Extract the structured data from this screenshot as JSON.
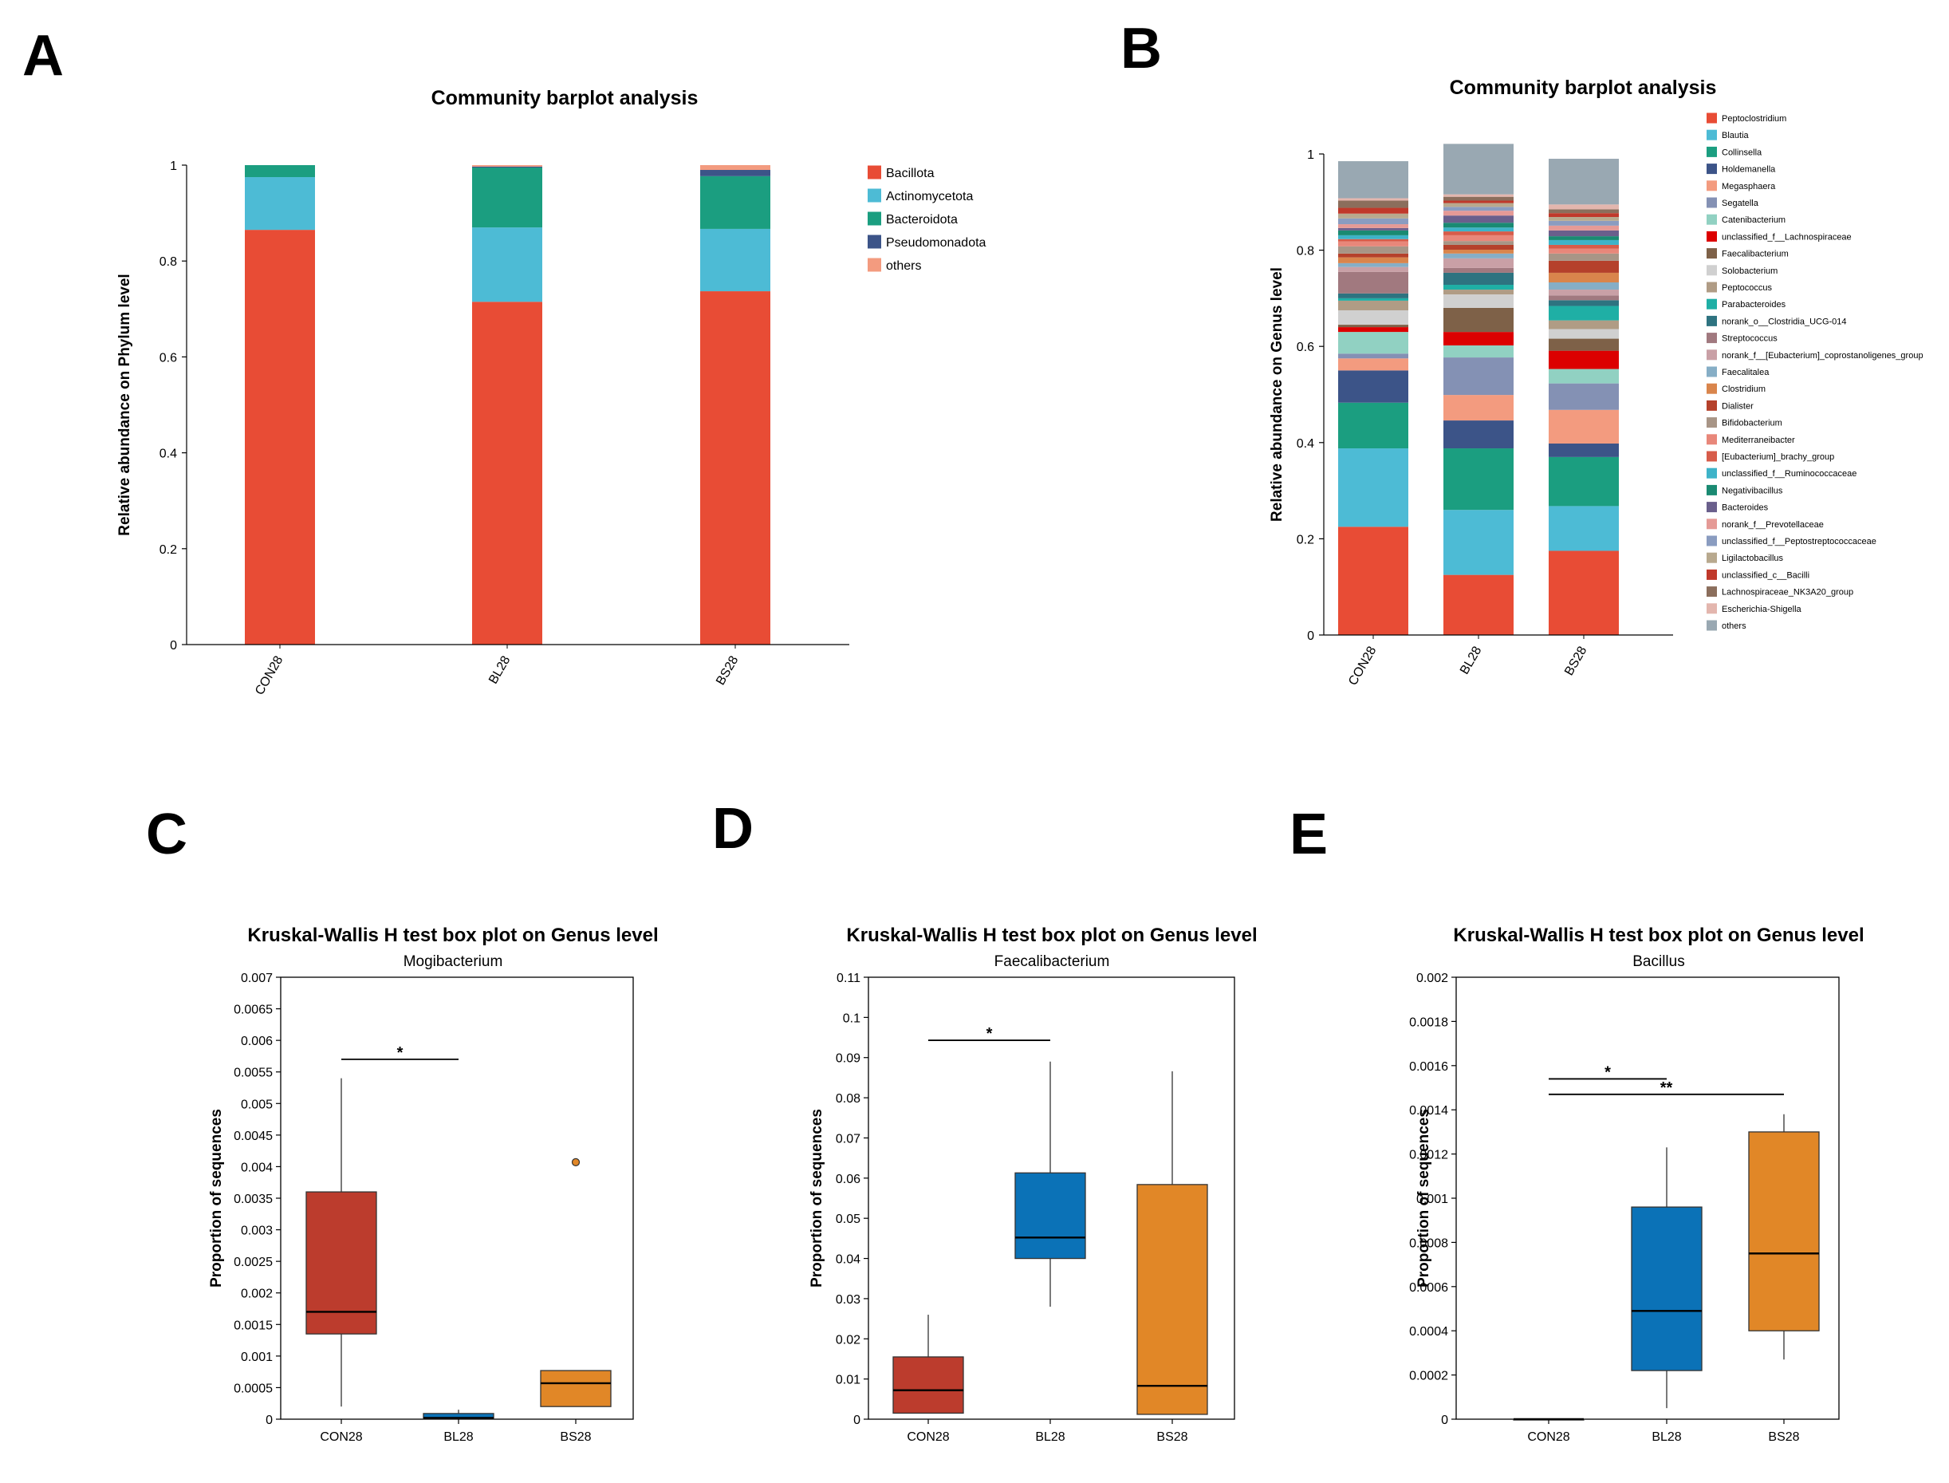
{
  "panel_labels": {
    "a": "A",
    "b": "B",
    "c": "C",
    "d": "D",
    "e": "E"
  },
  "chart_data": [
    {
      "id": "A",
      "type": "bar",
      "stacked": true,
      "title": "Community barplot analysis",
      "ylabel": "Relative abundance on Phylum level",
      "xlabel": "",
      "ylim": [
        0,
        1
      ],
      "yticks": [
        0,
        0.2,
        0.4,
        0.6,
        0.8,
        1
      ],
      "yticklabels": [
        "0",
        "0.2",
        "0.4",
        "0.6",
        "0.8",
        "1"
      ],
      "categories": [
        "CON28",
        "BL28",
        "BS28"
      ],
      "legend_position": "right",
      "series": [
        {
          "name": "Bacillota",
          "color": "#E84C35",
          "values": [
            0.865,
            0.715,
            0.737
          ]
        },
        {
          "name": "Actinomycetota",
          "color": "#4DBBD5",
          "values": [
            0.11,
            0.155,
            0.13
          ]
        },
        {
          "name": "Bacteroidota",
          "color": "#1B9E80",
          "values": [
            0.025,
            0.125,
            0.11
          ]
        },
        {
          "name": "Pseudomonadota",
          "color": "#3C5488",
          "values": [
            0.0,
            0.002,
            0.013
          ]
        },
        {
          "name": "others",
          "color": "#F39B7F",
          "values": [
            0.0,
            0.003,
            0.01
          ]
        }
      ]
    },
    {
      "id": "B",
      "type": "bar",
      "stacked": true,
      "title": "Community barplot analysis",
      "ylabel": "Relative abundance on Genus level",
      "xlabel": "",
      "ylim": [
        0,
        1
      ],
      "yticks": [
        0,
        0.2,
        0.4,
        0.6,
        0.8,
        1
      ],
      "yticklabels": [
        "0",
        "0.2",
        "0.4",
        "0.6",
        "0.8",
        "1"
      ],
      "categories": [
        "CON28",
        "BL28",
        "BS28"
      ],
      "legend_position": "right",
      "series": [
        {
          "name": "Peptoclostridium",
          "color": "#E84C35",
          "values": [
            0.225,
            0.125,
            0.175
          ]
        },
        {
          "name": "Blautia",
          "color": "#4DBBD5",
          "values": [
            0.163,
            0.135,
            0.093
          ]
        },
        {
          "name": "Collinsella",
          "color": "#1B9E80",
          "values": [
            0.095,
            0.128,
            0.102
          ]
        },
        {
          "name": "Holdemanella",
          "color": "#3C5488",
          "values": [
            0.067,
            0.058,
            0.028
          ]
        },
        {
          "name": "Megasphaera",
          "color": "#F39B7F",
          "values": [
            0.025,
            0.053,
            0.07
          ]
        },
        {
          "name": "Segatella",
          "color": "#8491B4",
          "values": [
            0.01,
            0.078,
            0.055
          ]
        },
        {
          "name": "Catenibacterium",
          "color": "#91D1C2",
          "values": [
            0.045,
            0.025,
            0.03
          ]
        },
        {
          "name": "unclassified_f__Lachnospiraceae",
          "color": "#DC0000",
          "values": [
            0.01,
            0.028,
            0.038
          ]
        },
        {
          "name": "Faecalibacterium",
          "color": "#7E6148",
          "values": [
            0.005,
            0.05,
            0.025
          ]
        },
        {
          "name": "Solobacterium",
          "color": "#D0D0D0",
          "values": [
            0.03,
            0.028,
            0.02
          ]
        },
        {
          "name": "Peptococcus",
          "color": "#B09C85",
          "values": [
            0.02,
            0.01,
            0.018
          ]
        },
        {
          "name": "Parabacteroides",
          "color": "#1FAFA5",
          "values": [
            0.005,
            0.01,
            0.03
          ]
        },
        {
          "name": "norank_o__Clostridia_UCG-014",
          "color": "#2E7380",
          "values": [
            0.01,
            0.025,
            0.012
          ]
        },
        {
          "name": "Streptococcus",
          "color": "#A1797F",
          "values": [
            0.045,
            0.01,
            0.01
          ]
        },
        {
          "name": "norank_f__[Eubacterium]_coprostanoligenes_group",
          "color": "#C9A0A6",
          "values": [
            0.01,
            0.02,
            0.012
          ]
        },
        {
          "name": "Faecalitalea",
          "color": "#86AEC6",
          "values": [
            0.008,
            0.01,
            0.015
          ]
        },
        {
          "name": "Clostridium",
          "color": "#D9854C",
          "values": [
            0.012,
            0.008,
            0.02
          ]
        },
        {
          "name": "Dialister",
          "color": "#B5412B",
          "values": [
            0.008,
            0.01,
            0.025
          ]
        },
        {
          "name": "Bifidobacterium",
          "color": "#A89586",
          "values": [
            0.015,
            0.008,
            0.015
          ]
        },
        {
          "name": "Mediterraneibacter",
          "color": "#E8877A",
          "values": [
            0.01,
            0.012,
            0.01
          ]
        },
        {
          "name": "[Eubacterium]_brachy_group",
          "color": "#D75C4A",
          "values": [
            0.005,
            0.008,
            0.008
          ]
        },
        {
          "name": "unclassified_f__Ruminococcaceae",
          "color": "#3EB3C8",
          "values": [
            0.008,
            0.008,
            0.01
          ]
        },
        {
          "name": "Negativibacillus",
          "color": "#1A8A72",
          "values": [
            0.01,
            0.01,
            0.008
          ]
        },
        {
          "name": "Bacteroides",
          "color": "#6A5F8C",
          "values": [
            0.005,
            0.015,
            0.012
          ]
        },
        {
          "name": "norank_f__Prevotellaceae",
          "color": "#E59A96",
          "values": [
            0.008,
            0.01,
            0.01
          ]
        },
        {
          "name": "unclassified_f__Peptostreptococcaceae",
          "color": "#8A9CC0",
          "values": [
            0.012,
            0.008,
            0.01
          ]
        },
        {
          "name": "Ligilactobacillus",
          "color": "#B8A98E",
          "values": [
            0.01,
            0.008,
            0.008
          ]
        },
        {
          "name": "unclassified_c__Bacilli",
          "color": "#C0392B",
          "values": [
            0.012,
            0.005,
            0.008
          ]
        },
        {
          "name": "Lachnospiraceae_NK3A20_group",
          "color": "#8B6E5C",
          "values": [
            0.015,
            0.008,
            0.008
          ]
        },
        {
          "name": "Escherichia-Shigella",
          "color": "#E3B6AE",
          "values": [
            0.005,
            0.005,
            0.01
          ]
        },
        {
          "name": "others",
          "color": "#99A8B2",
          "values": [
            0.077,
            0.105,
            0.095
          ]
        }
      ]
    },
    {
      "id": "C",
      "type": "box",
      "title": "Kruskal-Wallis H test box plot on Genus level",
      "subtitle": "Mogibacterium",
      "ylabel": "Proportion of sequences",
      "xlabel": "",
      "ylim": [
        0,
        0.007
      ],
      "yticks": [
        0,
        0.0005,
        0.001,
        0.0015,
        0.002,
        0.0025,
        0.003,
        0.0035,
        0.004,
        0.0045,
        0.005,
        0.0055,
        0.006,
        0.0065,
        0.007
      ],
      "yticklabels": [
        "0",
        "0.0005",
        "0.001",
        "0.0015",
        "0.002",
        "0.0025",
        "0.003",
        "0.0035",
        "0.004",
        "0.0045",
        "0.005",
        "0.0055",
        "0.006",
        "0.0065",
        "0.007"
      ],
      "categories": [
        "CON28",
        "BL28",
        "BS28"
      ],
      "boxes": [
        {
          "name": "CON28",
          "color": "#BC3C2D",
          "whisker_low": 0.0002,
          "q1": 0.00135,
          "median": 0.0017,
          "q3": 0.0036,
          "whisker_high": 0.0054,
          "outliers": []
        },
        {
          "name": "BL28",
          "color": "#0B72B7",
          "whisker_low": 0.0,
          "q1": 0.0,
          "median": 2e-05,
          "q3": 9e-05,
          "whisker_high": 0.00015,
          "outliers": []
        },
        {
          "name": "BS28",
          "color": "#E18727",
          "whisker_low": 0.0002,
          "q1": 0.0002,
          "median": 0.00057,
          "q3": 0.00077,
          "whisker_high": 0.00077,
          "outliers": [
            0.00407
          ]
        }
      ],
      "significance": [
        {
          "from": 0,
          "to": 1,
          "y": 0.0057,
          "label": "*"
        }
      ]
    },
    {
      "id": "D",
      "type": "box",
      "title": "Kruskal-Wallis H test box plot on Genus level",
      "subtitle": "Faecalibacterium",
      "ylabel": "Proportion of sequences",
      "xlabel": "",
      "ylim": [
        0,
        0.11
      ],
      "yticks": [
        0,
        0.01,
        0.02,
        0.03,
        0.04,
        0.05,
        0.06,
        0.07,
        0.08,
        0.09,
        0.1,
        0.11
      ],
      "yticklabels": [
        "0",
        "0.01",
        "0.02",
        "0.03",
        "0.04",
        "0.05",
        "0.06",
        "0.07",
        "0.08",
        "0.09",
        "0.1",
        "0.11"
      ],
      "categories": [
        "CON28",
        "BL28",
        "BS28"
      ],
      "boxes": [
        {
          "name": "CON28",
          "color": "#BC3C2D",
          "whisker_low": 0.0015,
          "q1": 0.0015,
          "median": 0.0072,
          "q3": 0.0155,
          "whisker_high": 0.026,
          "outliers": []
        },
        {
          "name": "BL28",
          "color": "#0B72B7",
          "whisker_low": 0.028,
          "q1": 0.04,
          "median": 0.0452,
          "q3": 0.0613,
          "whisker_high": 0.089,
          "outliers": []
        },
        {
          "name": "BS28",
          "color": "#E18727",
          "whisker_low": 0.0012,
          "q1": 0.0012,
          "median": 0.0083,
          "q3": 0.0584,
          "whisker_high": 0.0866,
          "outliers": []
        }
      ],
      "significance": [
        {
          "from": 0,
          "to": 1,
          "y": 0.0943,
          "label": "*"
        }
      ]
    },
    {
      "id": "E",
      "type": "box",
      "title": "Kruskal-Wallis H test box plot on Genus level",
      "subtitle": "Bacillus",
      "ylabel": "Proportion of sequences",
      "xlabel": "",
      "ylim": [
        0,
        0.002
      ],
      "yticks": [
        0,
        0.0002,
        0.0004,
        0.0006,
        0.0008,
        0.001,
        0.0012,
        0.0014,
        0.0016,
        0.0018,
        0.002
      ],
      "yticklabels": [
        "0",
        "0.0002",
        "0.0004",
        "0.0006",
        "0.0008",
        "0.001",
        "0.0012",
        "0.0014",
        "0.0016",
        "0.0018",
        "0.002"
      ],
      "categories": [
        "CON28",
        "BL28",
        "BS28"
      ],
      "boxes": [
        {
          "name": "CON28",
          "color": "#BC3C2D",
          "whisker_low": 0.0,
          "q1": 0.0,
          "median": 0.0,
          "q3": 0.0,
          "whisker_high": 0.0,
          "outliers": []
        },
        {
          "name": "BL28",
          "color": "#0B72B7",
          "whisker_low": 5e-05,
          "q1": 0.00022,
          "median": 0.00049,
          "q3": 0.00096,
          "whisker_high": 0.00123,
          "outliers": []
        },
        {
          "name": "BS28",
          "color": "#E18727",
          "whisker_low": 0.00027,
          "q1": 0.0004,
          "median": 0.00075,
          "q3": 0.0013,
          "whisker_high": 0.00138,
          "outliers": []
        }
      ],
      "significance": [
        {
          "from": 0,
          "to": 1,
          "y": 0.00154,
          "label": "*"
        },
        {
          "from": 0,
          "to": 2,
          "y": 0.00147,
          "label": "**"
        }
      ]
    }
  ]
}
